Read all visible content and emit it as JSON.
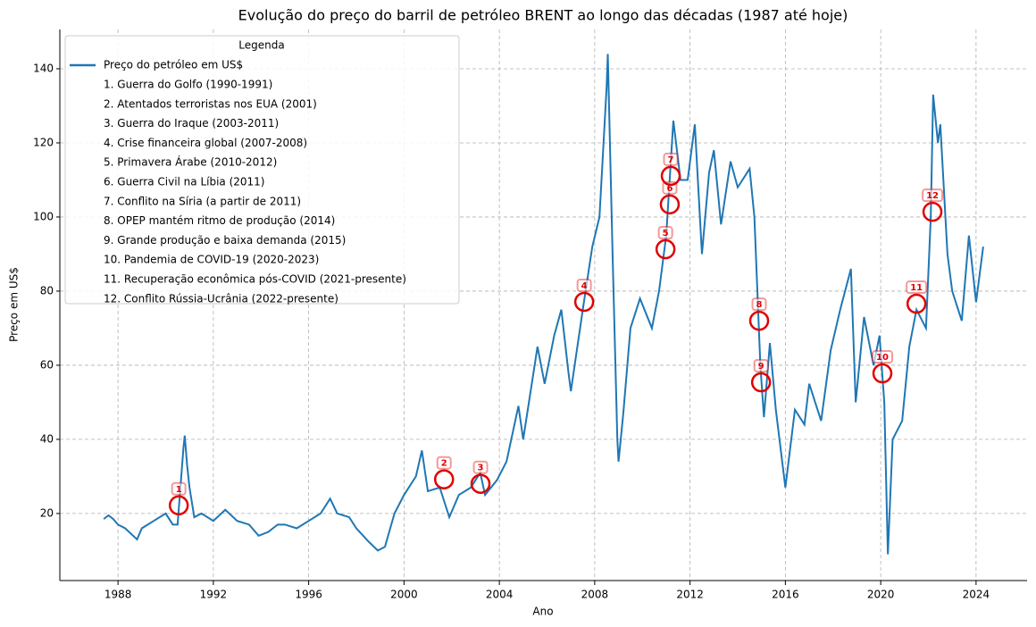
{
  "chart_data": {
    "type": "line",
    "title": "Evolução do preço do barril de petróleo BRENT ao longo das décadas (1987 até hoje)",
    "x_label": "Ano",
    "y_label": "Preço em US$",
    "legend_title": "Legenda",
    "xlim": [
      1985.56,
      2026.14
    ],
    "ylim": [
      1.9,
      150.6
    ],
    "xticks": [
      1988,
      1992,
      1996,
      2000,
      2004,
      2008,
      2012,
      2016,
      2020,
      2024
    ],
    "yticks": [
      20,
      40,
      60,
      80,
      100,
      120,
      140
    ],
    "grid": true,
    "legend_position": "upper left",
    "x": [
      1987.4,
      1987.6,
      1987.8,
      1988.0,
      1988.3,
      1988.8,
      1989.0,
      1989.5,
      1990.0,
      1990.3,
      1990.5,
      1990.75,
      1990.8,
      1990.9,
      1991.0,
      1991.2,
      1991.5,
      1992.0,
      1992.5,
      1993.0,
      1993.5,
      1993.9,
      1994.3,
      1994.7,
      1995.0,
      1995.5,
      1996.0,
      1996.5,
      1996.9,
      1997.2,
      1997.7,
      1998.0,
      1998.5,
      1998.9,
      1999.2,
      1999.6,
      2000.0,
      2000.5,
      2000.75,
      2001.0,
      2001.5,
      2001.9,
      2002.3,
      2002.8,
      2003.2,
      2003.4,
      2003.9,
      2004.3,
      2004.8,
      2005.0,
      2005.6,
      2005.9,
      2006.3,
      2006.6,
      2006.9,
      2007.0,
      2007.5,
      2007.9,
      2008.2,
      2008.5,
      2008.55,
      2008.75,
      2008.95,
      2009.0,
      2009.2,
      2009.5,
      2009.9,
      2010.4,
      2010.7,
      2011.0,
      2011.3,
      2011.6,
      2011.9,
      2012.2,
      2012.5,
      2012.8,
      2013.0,
      2013.3,
      2013.7,
      2014.0,
      2014.5,
      2014.7,
      2014.95,
      2015.1,
      2015.35,
      2015.6,
      2016.0,
      2016.4,
      2016.8,
      2017.0,
      2017.5,
      2017.9,
      2018.3,
      2018.75,
      2018.95,
      2019.3,
      2019.7,
      2019.95,
      2020.15,
      2020.3,
      2020.5,
      2020.9,
      2021.2,
      2021.5,
      2021.9,
      2022.1,
      2022.2,
      2022.4,
      2022.5,
      2022.8,
      2023.0,
      2023.4,
      2023.7,
      2024.0,
      2024.3
    ],
    "series": [
      {
        "name": "Preço do petróleo em US$",
        "color": "#1f77b4",
        "values": [
          18.5,
          19.5,
          18.5,
          17,
          16,
          13,
          16,
          18,
          20,
          17,
          17,
          38,
          41,
          33,
          27,
          19,
          20,
          18,
          21,
          18,
          17,
          14,
          15,
          17,
          17,
          16,
          18,
          20,
          24,
          20,
          19,
          16,
          12.5,
          10,
          11,
          20,
          25,
          30,
          37,
          26,
          27,
          19,
          25,
          27,
          31,
          25,
          29,
          34,
          49,
          40,
          65,
          55,
          68,
          75,
          58,
          53,
          75,
          92,
          100,
          135,
          144,
          90,
          40,
          34,
          47,
          70,
          78,
          70,
          80,
          95,
          126,
          110,
          110,
          125,
          90,
          112,
          118,
          98,
          115,
          108,
          113,
          100,
          60,
          46,
          66,
          48,
          27,
          48,
          44,
          55,
          45,
          64,
          75,
          86,
          50,
          73,
          60,
          68,
          50,
          9,
          40,
          45,
          65,
          75,
          70,
          100,
          133,
          120,
          125,
          90,
          80,
          72,
          95,
          77,
          92
        ]
      }
    ],
    "events": [
      {
        "number": "1",
        "label": "1. Guerra do Golfo (1990-1991)",
        "x": 1990.55,
        "y": 22.2
      },
      {
        "number": "2",
        "label": "2. Atentados terroristas nos EUA (2001)",
        "x": 2001.68,
        "y": 29.2
      },
      {
        "number": "3",
        "label": "3. Guerra do Iraque (2003-2011)",
        "x": 2003.21,
        "y": 28
      },
      {
        "number": "4",
        "label": "4. Crise financeira global (2007-2008)",
        "x": 2007.56,
        "y": 77.1
      },
      {
        "number": "5",
        "label": "5. Primavera Árabe (2010-2012)",
        "x": 2010.97,
        "y": 91.3
      },
      {
        "number": "6",
        "label": "6. Guerra Civil na Líbia (2011)",
        "x": 2011.15,
        "y": 103.4
      },
      {
        "number": "7",
        "label": "7. Conflito na Síria (a partir de 2011)",
        "x": 2011.19,
        "y": 111.1
      },
      {
        "number": "8",
        "label": "8. OPEP mantém ritmo de produção (2014)",
        "x": 2014.9,
        "y": 72
      },
      {
        "number": "9",
        "label": "9. Grande produção e baixa demanda (2015)",
        "x": 2014.98,
        "y": 55.4
      },
      {
        "number": "10",
        "label": "10. Pandemia de COVID-19 (2020-2023)",
        "x": 2020.07,
        "y": 57.8
      },
      {
        "number": "11",
        "label": "11. Recuperação econômica pós-COVID (2021-presente)",
        "x": 2021.5,
        "y": 76.6
      },
      {
        "number": "12",
        "label": "12. Conflito Rússia-Ucrânia (2022-presente)",
        "x": 2022.17,
        "y": 101.4
      }
    ],
    "event_color": "#e00000"
  }
}
